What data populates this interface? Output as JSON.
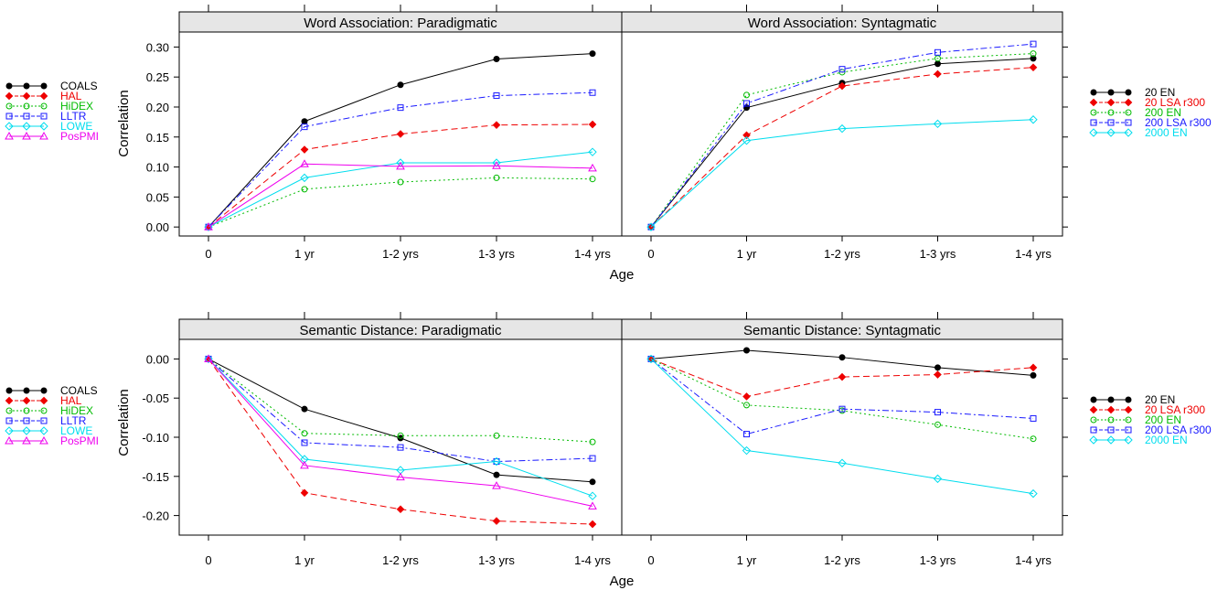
{
  "colors": {
    "black": "#000000",
    "red": "#ee0000",
    "green": "#00bb00",
    "blue": "#1a1aff",
    "cyan": "#00ddee",
    "magenta": "#ee00ee",
    "strip": "#e6e6e6"
  },
  "legends": {
    "left": [
      {
        "label": "COALS",
        "color": "black",
        "marker": "filled-circle",
        "dash": "solid"
      },
      {
        "label": "HAL",
        "color": "red",
        "marker": "filled-diamond",
        "dash": "dashed"
      },
      {
        "label": "HiDEX",
        "color": "green",
        "marker": "open-circle",
        "dash": "dotted"
      },
      {
        "label": "LLTR",
        "color": "blue",
        "marker": "open-square",
        "dash": "dashdot"
      },
      {
        "label": "LOWE",
        "color": "cyan",
        "marker": "open-diamond",
        "dash": "solid"
      },
      {
        "label": "PosPMI",
        "color": "magenta",
        "marker": "open-triangle",
        "dash": "solid"
      }
    ],
    "right": [
      {
        "label": "20 EN",
        "color": "black",
        "marker": "filled-circle",
        "dash": "solid"
      },
      {
        "label": "20 LSA r300",
        "color": "red",
        "marker": "filled-diamond",
        "dash": "dashed"
      },
      {
        "label": "200 EN",
        "color": "green",
        "marker": "open-circle",
        "dash": "dotted"
      },
      {
        "label": "200 LSA r300",
        "color": "blue",
        "marker": "open-square",
        "dash": "dashdot"
      },
      {
        "label": "2000 EN",
        "color": "cyan",
        "marker": "open-diamond",
        "dash": "solid"
      }
    ]
  },
  "chart_data": [
    {
      "type": "line",
      "title": "Word Association: Paradigmatic",
      "xlabel": "Age",
      "ylabel": "Correlation",
      "categories": [
        "0",
        "1 yr",
        "1-2 yrs",
        "1-3 yrs",
        "1-4 yrs"
      ],
      "ylim": [
        -0.015,
        0.325
      ],
      "yticks": [
        0.0,
        0.05,
        0.1,
        0.15,
        0.2,
        0.25,
        0.3
      ],
      "ytick_labels": [
        "0.00",
        "0.05",
        "0.10",
        "0.15",
        "0.20",
        "0.25",
        "0.30"
      ],
      "series": [
        {
          "name": "COALS",
          "values": [
            0.0,
            0.176,
            0.237,
            0.28,
            0.289
          ]
        },
        {
          "name": "HAL",
          "values": [
            0.0,
            0.129,
            0.155,
            0.17,
            0.171
          ]
        },
        {
          "name": "HiDEX",
          "values": [
            0.0,
            0.063,
            0.075,
            0.082,
            0.08
          ]
        },
        {
          "name": "LLTR",
          "values": [
            0.0,
            0.167,
            0.199,
            0.219,
            0.224
          ]
        },
        {
          "name": "LOWE",
          "values": [
            0.0,
            0.082,
            0.107,
            0.107,
            0.125
          ]
        },
        {
          "name": "PosPMI",
          "values": [
            0.0,
            0.105,
            0.101,
            0.102,
            0.098
          ]
        }
      ]
    },
    {
      "type": "line",
      "title": "Word Association: Syntagmatic",
      "xlabel": "Age",
      "ylabel": "Correlation",
      "categories": [
        "0",
        "1 yr",
        "1-2 yrs",
        "1-3 yrs",
        "1-4 yrs"
      ],
      "ylim": [
        -0.015,
        0.325
      ],
      "yticks": [
        0.0,
        0.05,
        0.1,
        0.15,
        0.2,
        0.25,
        0.3
      ],
      "ytick_labels": [
        "0.00",
        "0.05",
        "0.10",
        "0.15",
        "0.20",
        "0.25",
        "0.30"
      ],
      "series": [
        {
          "name": "20 EN",
          "values": [
            0.0,
            0.199,
            0.24,
            0.272,
            0.281
          ]
        },
        {
          "name": "20 LSA r300",
          "values": [
            0.0,
            0.153,
            0.235,
            0.255,
            0.266
          ]
        },
        {
          "name": "200 EN",
          "values": [
            0.0,
            0.22,
            0.258,
            0.281,
            0.289
          ]
        },
        {
          "name": "200 LSA r300",
          "values": [
            0.0,
            0.206,
            0.263,
            0.291,
            0.305
          ]
        },
        {
          "name": "2000 EN",
          "values": [
            0.0,
            0.144,
            0.164,
            0.172,
            0.179
          ]
        }
      ]
    },
    {
      "type": "line",
      "title": "Semantic Distance: Paradigmatic",
      "xlabel": "Age",
      "ylabel": "Correlation",
      "categories": [
        "0",
        "1 yr",
        "1-2 yrs",
        "1-3 yrs",
        "1-4 yrs"
      ],
      "ylim": [
        -0.225,
        0.025
      ],
      "yticks": [
        0.0,
        -0.05,
        -0.1,
        -0.15,
        -0.2
      ],
      "ytick_labels": [
        "0.00",
        "-0.05",
        "-0.10",
        "-0.15",
        "-0.20"
      ],
      "series": [
        {
          "name": "COALS",
          "values": [
            0.0,
            -0.064,
            -0.101,
            -0.148,
            -0.157
          ]
        },
        {
          "name": "HAL",
          "values": [
            0.0,
            -0.171,
            -0.192,
            -0.207,
            -0.211
          ]
        },
        {
          "name": "HiDEX",
          "values": [
            0.0,
            -0.095,
            -0.098,
            -0.098,
            -0.106
          ]
        },
        {
          "name": "LLTR",
          "values": [
            0.0,
            -0.107,
            -0.113,
            -0.131,
            -0.127
          ]
        },
        {
          "name": "LOWE",
          "values": [
            0.0,
            -0.128,
            -0.142,
            -0.131,
            -0.175
          ]
        },
        {
          "name": "PosPMI",
          "values": [
            0.0,
            -0.136,
            -0.151,
            -0.162,
            -0.188
          ]
        }
      ]
    },
    {
      "type": "line",
      "title": "Semantic Distance: Syntagmatic",
      "xlabel": "Age",
      "ylabel": "Correlation",
      "categories": [
        "0",
        "1 yr",
        "1-2 yrs",
        "1-3 yrs",
        "1-4 yrs"
      ],
      "ylim": [
        -0.225,
        0.025
      ],
      "yticks": [
        0.0,
        -0.05,
        -0.1,
        -0.15,
        -0.2
      ],
      "ytick_labels": [
        "0.00",
        "-0.05",
        "-0.10",
        "-0.15",
        "-0.20"
      ],
      "series": [
        {
          "name": "20 EN",
          "values": [
            0.0,
            0.011,
            0.002,
            -0.011,
            -0.021
          ]
        },
        {
          "name": "20 LSA r300",
          "values": [
            0.0,
            -0.048,
            -0.023,
            -0.02,
            -0.011
          ]
        },
        {
          "name": "200 EN",
          "values": [
            0.0,
            -0.059,
            -0.066,
            -0.084,
            -0.102
          ]
        },
        {
          "name": "200 LSA r300",
          "values": [
            0.0,
            -0.096,
            -0.064,
            -0.068,
            -0.076
          ]
        },
        {
          "name": "2000 EN",
          "values": [
            0.0,
            -0.117,
            -0.133,
            -0.153,
            -0.172
          ]
        }
      ]
    }
  ]
}
